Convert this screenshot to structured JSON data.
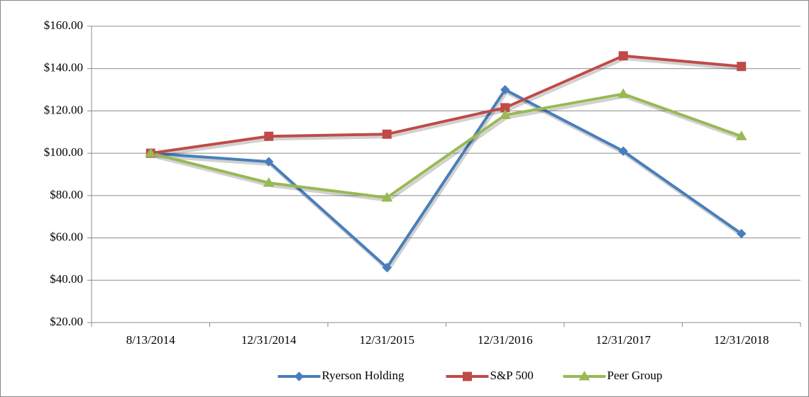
{
  "chart_data": {
    "type": "line",
    "categories": [
      "8/13/2014",
      "12/31/2014",
      "12/31/2015",
      "12/31/2016",
      "12/31/2017",
      "12/31/2018"
    ],
    "series": [
      {
        "name": "Ryerson Holding",
        "color": "#4a7ebb",
        "marker": "diamond",
        "values": [
          100,
          96,
          46,
          130,
          101,
          62
        ]
      },
      {
        "name": "S&P 500",
        "color": "#be4b48",
        "marker": "square",
        "values": [
          100,
          108,
          109,
          121.5,
          146,
          141
        ]
      },
      {
        "name": "Peer Group",
        "color": "#98b954",
        "marker": "triangle",
        "values": [
          100,
          86,
          79,
          118,
          128,
          108
        ]
      }
    ],
    "ylim": [
      20,
      160
    ],
    "yticks": [
      {
        "value": 20,
        "label": "$20.00"
      },
      {
        "value": 40,
        "label": "$40.00"
      },
      {
        "value": 60,
        "label": "$60.00"
      },
      {
        "value": 80,
        "label": "$80.00"
      },
      {
        "value": 100,
        "label": "$100.00"
      },
      {
        "value": 120,
        "label": "$120.00"
      },
      {
        "value": 140,
        "label": "$140.00"
      },
      {
        "value": 160,
        "label": "$160.00"
      }
    ],
    "grid": true,
    "legend": "bottom"
  }
}
